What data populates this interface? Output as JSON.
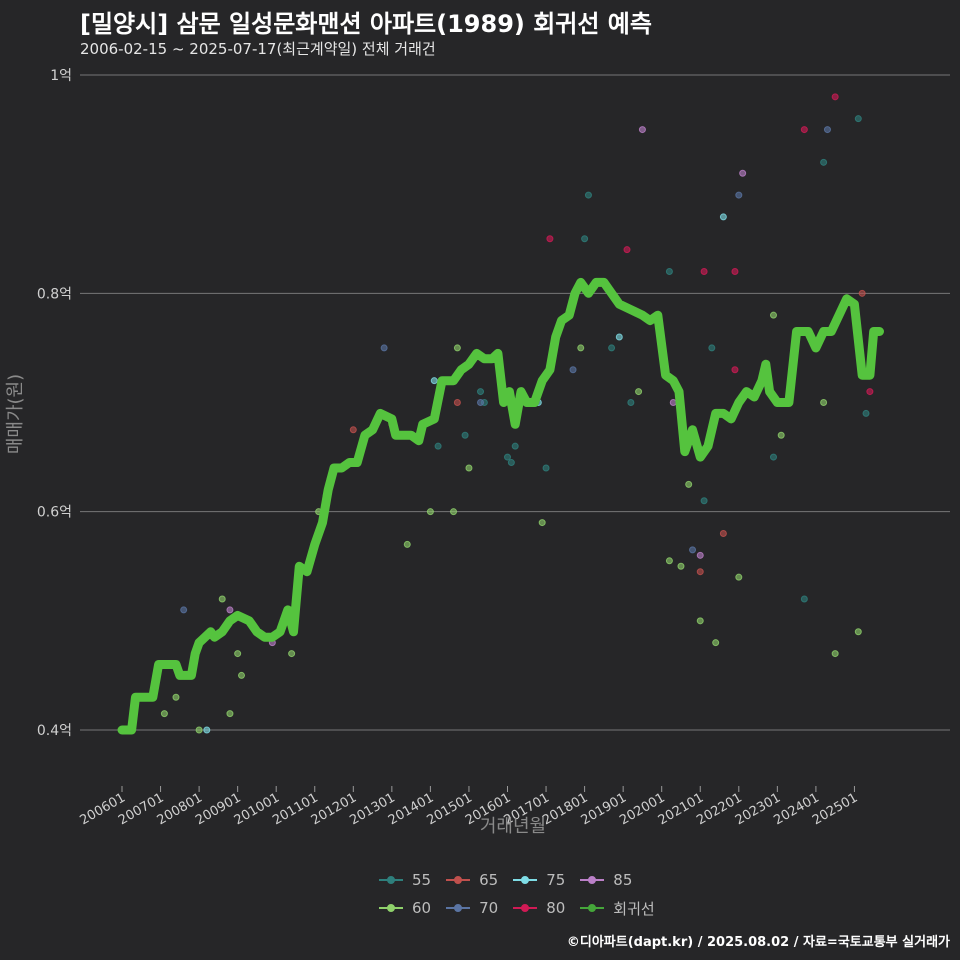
{
  "title": "[밀양시] 삼문 일성문화맨션 아파트(1989) 회귀선 예측",
  "subtitle": "2006-02-15 ~ 2025-07-17(최근계약일) 전체 거래건",
  "credit": "©디아파트(dapt.kr) / 2025.08.02 / 자료=국토교통부 실거래가",
  "chart_data": {
    "type": "scatter",
    "xlabel": "거래년월",
    "ylabel": "매매가(원)",
    "x_domain": [
      2006.0,
      2025.75
    ],
    "ylim": [
      0.37,
      1.0
    ],
    "y_ticks": [
      0.4,
      0.6,
      0.8,
      1.0
    ],
    "y_tick_labels": [
      "0.4억",
      "0.6억",
      "0.8억",
      "1억"
    ],
    "x_ticks": [
      2006,
      2007,
      2008,
      2009,
      2010,
      2011,
      2012,
      2013,
      2014,
      2015,
      2016,
      2017,
      2018,
      2019,
      2020,
      2021,
      2022,
      2023,
      2024,
      2025
    ],
    "x_tick_labels": [
      "200601",
      "200701",
      "200801",
      "200901",
      "201001",
      "201101",
      "201201",
      "201301",
      "201401",
      "201501",
      "201601",
      "201701",
      "201801",
      "201901",
      "202001",
      "202101",
      "202201",
      "202301",
      "202401",
      "202501"
    ],
    "legend": [
      {
        "label": "55",
        "color": "#2e7f7c"
      },
      {
        "label": "60",
        "color": "#8fd16b"
      },
      {
        "label": "65",
        "color": "#c0504d"
      },
      {
        "label": "70",
        "color": "#5a74a3"
      },
      {
        "label": "75",
        "color": "#7fdde6"
      },
      {
        "label": "80",
        "color": "#d01a55"
      },
      {
        "label": "85",
        "color": "#bb80c8"
      },
      {
        "label": "회귀선",
        "color": "#45a63a"
      }
    ],
    "series": [
      {
        "name": "55",
        "color": "#2e7f7c",
        "points": [
          [
            2014.2,
            0.66
          ],
          [
            2014.9,
            0.67
          ],
          [
            2015.3,
            0.71
          ],
          [
            2015.4,
            0.7
          ],
          [
            2016.0,
            0.65
          ],
          [
            2016.1,
            0.645
          ],
          [
            2016.2,
            0.66
          ],
          [
            2017.0,
            0.64
          ],
          [
            2018.0,
            0.85
          ],
          [
            2018.1,
            0.89
          ],
          [
            2018.7,
            0.75
          ],
          [
            2019.2,
            0.7
          ],
          [
            2020.2,
            0.82
          ],
          [
            2021.1,
            0.61
          ],
          [
            2021.3,
            0.75
          ],
          [
            2022.9,
            0.65
          ],
          [
            2023.7,
            0.52
          ],
          [
            2024.2,
            0.92
          ],
          [
            2025.1,
            0.96
          ],
          [
            2025.3,
            0.69
          ]
        ]
      },
      {
        "name": "60",
        "color": "#8fd16b",
        "points": [
          [
            2007.1,
            0.415
          ],
          [
            2007.4,
            0.43
          ],
          [
            2008.0,
            0.4
          ],
          [
            2008.6,
            0.52
          ],
          [
            2008.8,
            0.415
          ],
          [
            2009.0,
            0.47
          ],
          [
            2009.1,
            0.45
          ],
          [
            2010.4,
            0.47
          ],
          [
            2011.1,
            0.6
          ],
          [
            2011.3,
            0.615
          ],
          [
            2013.4,
            0.57
          ],
          [
            2014.0,
            0.6
          ],
          [
            2014.6,
            0.6
          ],
          [
            2014.7,
            0.75
          ],
          [
            2015.0,
            0.64
          ],
          [
            2016.9,
            0.59
          ],
          [
            2017.9,
            0.75
          ],
          [
            2019.4,
            0.71
          ],
          [
            2020.2,
            0.555
          ],
          [
            2020.5,
            0.55
          ],
          [
            2020.7,
            0.625
          ],
          [
            2021.0,
            0.5
          ],
          [
            2021.4,
            0.48
          ],
          [
            2022.0,
            0.54
          ],
          [
            2022.9,
            0.78
          ],
          [
            2023.1,
            0.67
          ],
          [
            2024.2,
            0.7
          ],
          [
            2024.5,
            0.47
          ],
          [
            2025.1,
            0.49
          ]
        ]
      },
      {
        "name": "65",
        "color": "#c0504d",
        "points": [
          [
            2012.0,
            0.675
          ],
          [
            2013.0,
            0.68
          ],
          [
            2014.7,
            0.7
          ],
          [
            2021.0,
            0.545
          ],
          [
            2021.6,
            0.58
          ],
          [
            2025.2,
            0.8
          ]
        ]
      },
      {
        "name": "70",
        "color": "#5a74a3",
        "points": [
          [
            2007.6,
            0.51
          ],
          [
            2011.7,
            0.64
          ],
          [
            2012.8,
            0.75
          ],
          [
            2015.3,
            0.7
          ],
          [
            2017.7,
            0.73
          ],
          [
            2020.8,
            0.565
          ],
          [
            2022.0,
            0.89
          ],
          [
            2024.3,
            0.95
          ]
        ]
      },
      {
        "name": "75",
        "color": "#7fdde6",
        "points": [
          [
            2008.2,
            0.4
          ],
          [
            2011.4,
            0.63
          ],
          [
            2014.1,
            0.72
          ],
          [
            2016.8,
            0.7
          ],
          [
            2018.9,
            0.76
          ],
          [
            2021.6,
            0.87
          ]
        ]
      },
      {
        "name": "80",
        "color": "#d01a55",
        "points": [
          [
            2017.1,
            0.85
          ],
          [
            2019.1,
            0.84
          ],
          [
            2021.1,
            0.82
          ],
          [
            2021.9,
            0.73
          ],
          [
            2021.9,
            0.82
          ],
          [
            2023.7,
            0.95
          ],
          [
            2024.5,
            0.98
          ],
          [
            2025.4,
            0.71
          ]
        ]
      },
      {
        "name": "85",
        "color": "#bb80c8",
        "points": [
          [
            2008.8,
            0.51
          ],
          [
            2009.9,
            0.48
          ],
          [
            2019.5,
            0.95
          ],
          [
            2020.3,
            0.7
          ],
          [
            2021.0,
            0.56
          ],
          [
            2022.1,
            0.91
          ]
        ]
      }
    ],
    "regression": [
      [
        2006.0,
        0.4
      ],
      [
        2006.25,
        0.4
      ],
      [
        2006.35,
        0.43
      ],
      [
        2006.8,
        0.43
      ],
      [
        2006.95,
        0.46
      ],
      [
        2007.4,
        0.46
      ],
      [
        2007.5,
        0.45
      ],
      [
        2007.8,
        0.45
      ],
      [
        2007.9,
        0.47
      ],
      [
        2008.0,
        0.48
      ],
      [
        2008.3,
        0.49
      ],
      [
        2008.4,
        0.485
      ],
      [
        2008.6,
        0.49
      ],
      [
        2008.8,
        0.5
      ],
      [
        2009.0,
        0.505
      ],
      [
        2009.3,
        0.5
      ],
      [
        2009.5,
        0.49
      ],
      [
        2009.7,
        0.485
      ],
      [
        2009.9,
        0.485
      ],
      [
        2010.1,
        0.49
      ],
      [
        2010.3,
        0.51
      ],
      [
        2010.45,
        0.49
      ],
      [
        2010.6,
        0.55
      ],
      [
        2010.8,
        0.545
      ],
      [
        2011.0,
        0.57
      ],
      [
        2011.2,
        0.59
      ],
      [
        2011.35,
        0.62
      ],
      [
        2011.5,
        0.64
      ],
      [
        2011.7,
        0.64
      ],
      [
        2011.9,
        0.645
      ],
      [
        2012.1,
        0.645
      ],
      [
        2012.3,
        0.67
      ],
      [
        2012.5,
        0.675
      ],
      [
        2012.7,
        0.69
      ],
      [
        2013.0,
        0.685
      ],
      [
        2013.1,
        0.67
      ],
      [
        2013.5,
        0.67
      ],
      [
        2013.7,
        0.665
      ],
      [
        2013.8,
        0.68
      ],
      [
        2014.1,
        0.685
      ],
      [
        2014.3,
        0.72
      ],
      [
        2014.6,
        0.72
      ],
      [
        2014.8,
        0.73
      ],
      [
        2015.0,
        0.735
      ],
      [
        2015.2,
        0.745
      ],
      [
        2015.4,
        0.74
      ],
      [
        2015.6,
        0.74
      ],
      [
        2015.75,
        0.745
      ],
      [
        2015.9,
        0.7
      ],
      [
        2016.05,
        0.71
      ],
      [
        2016.2,
        0.68
      ],
      [
        2016.35,
        0.71
      ],
      [
        2016.5,
        0.7
      ],
      [
        2016.7,
        0.7
      ],
      [
        2016.9,
        0.72
      ],
      [
        2017.1,
        0.73
      ],
      [
        2017.25,
        0.76
      ],
      [
        2017.4,
        0.775
      ],
      [
        2017.6,
        0.78
      ],
      [
        2017.75,
        0.8
      ],
      [
        2017.9,
        0.81
      ],
      [
        2018.1,
        0.8
      ],
      [
        2018.3,
        0.81
      ],
      [
        2018.5,
        0.81
      ],
      [
        2018.7,
        0.8
      ],
      [
        2018.9,
        0.79
      ],
      [
        2019.2,
        0.785
      ],
      [
        2019.5,
        0.78
      ],
      [
        2019.7,
        0.775
      ],
      [
        2019.9,
        0.78
      ],
      [
        2020.1,
        0.725
      ],
      [
        2020.3,
        0.72
      ],
      [
        2020.45,
        0.71
      ],
      [
        2020.6,
        0.655
      ],
      [
        2020.8,
        0.675
      ],
      [
        2021.0,
        0.65
      ],
      [
        2021.2,
        0.66
      ],
      [
        2021.4,
        0.69
      ],
      [
        2021.6,
        0.69
      ],
      [
        2021.8,
        0.685
      ],
      [
        2022.0,
        0.7
      ],
      [
        2022.2,
        0.71
      ],
      [
        2022.4,
        0.705
      ],
      [
        2022.6,
        0.72
      ],
      [
        2022.7,
        0.735
      ],
      [
        2022.8,
        0.71
      ],
      [
        2023.0,
        0.7
      ],
      [
        2023.3,
        0.7
      ],
      [
        2023.5,
        0.765
      ],
      [
        2023.8,
        0.765
      ],
      [
        2024.0,
        0.75
      ],
      [
        2024.2,
        0.765
      ],
      [
        2024.4,
        0.765
      ],
      [
        2024.6,
        0.78
      ],
      [
        2024.8,
        0.795
      ],
      [
        2025.0,
        0.79
      ],
      [
        2025.2,
        0.725
      ],
      [
        2025.4,
        0.725
      ],
      [
        2025.5,
        0.765
      ],
      [
        2025.65,
        0.765
      ]
    ]
  }
}
